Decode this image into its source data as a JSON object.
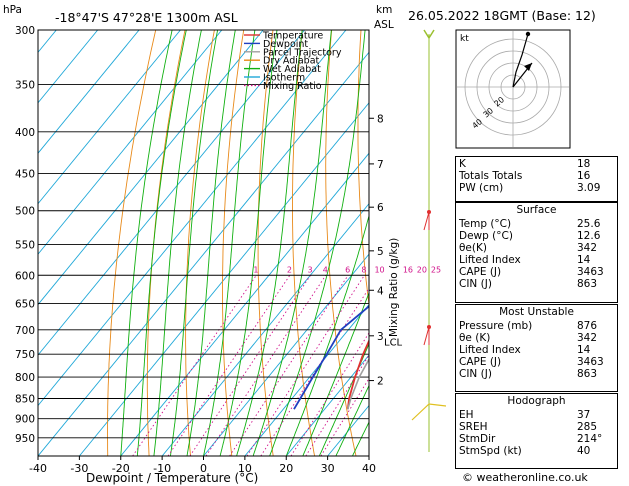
{
  "header": {
    "hpa": "hPa",
    "location": "-18°47'S  47°28'E  1300m  ASL",
    "km": "km",
    "asl": "ASL",
    "datetime": "26.05.2022  18GMT  (Base: 12)"
  },
  "chart_data": {
    "type": "line",
    "subtype": "skew-t log-p",
    "xlabel": "Dewpoint / Temperature (°C)",
    "ylabel_right": "Mixing Ratio (g/kg)",
    "x_ticks": [
      -40,
      -30,
      -20,
      -10,
      0,
      10,
      20,
      30,
      40
    ],
    "p_ticks": [
      300,
      350,
      400,
      450,
      500,
      550,
      600,
      650,
      700,
      750,
      800,
      850,
      900,
      950
    ],
    "km_ticks": [
      {
        "label": "2",
        "p": 808
      },
      {
        "label": "3",
        "p": 712
      },
      {
        "label": "4",
        "p": 626
      },
      {
        "label": "5",
        "p": 560
      },
      {
        "label": "6",
        "p": 495
      },
      {
        "label": "7",
        "p": 438
      },
      {
        "label": "8",
        "p": 385
      }
    ],
    "lcl": {
      "label": "LCL",
      "p": 713
    },
    "mixing_ratio_labels": [
      "1",
      "2",
      "3",
      "4",
      "6",
      "8",
      "10",
      "16",
      "20",
      "25"
    ],
    "legend": [
      "Temperature",
      "Dewpoint",
      "Parcel Trajectory",
      "Dry Adiabat",
      "Wet Adiabat",
      "Isotherm",
      "Mixing Ratio"
    ],
    "colors": {
      "temperature": "#e03030",
      "dewpoint": "#2040c0",
      "parcel": "#a0a0a0",
      "dry_adiabat": "#e88a1a",
      "wet_adiabat": "#10b010",
      "isotherm": "#20a8d8",
      "mixing_ratio": "#d0108a"
    },
    "series": [
      {
        "name": "Temperature",
        "points": [
          [
            876,
            25.6
          ],
          [
            850,
            23.8
          ],
          [
            800,
            21
          ],
          [
            750,
            18.4
          ],
          [
            700,
            16.2
          ],
          [
            650,
            19.5
          ],
          [
            600,
            22.6
          ],
          [
            550,
            25
          ],
          [
            500,
            27
          ],
          [
            450,
            21
          ],
          [
            400,
            8
          ],
          [
            350,
            -6
          ],
          [
            300,
            -22
          ]
        ]
      },
      {
        "name": "Dewpoint",
        "points": [
          [
            876,
            12.6
          ],
          [
            850,
            12
          ],
          [
            800,
            10.8
          ],
          [
            750,
            9.6
          ],
          [
            700,
            8.2
          ],
          [
            650,
            10.6
          ],
          [
            600,
            13.2
          ],
          [
            550,
            16
          ],
          [
            500,
            19
          ],
          [
            450,
            8
          ],
          [
            400,
            -8
          ],
          [
            350,
            -24
          ],
          [
            300,
            -42
          ]
        ]
      },
      {
        "name": "Parcel Trajectory",
        "points": [
          [
            876,
            25.6
          ],
          [
            850,
            24.2
          ],
          [
            800,
            22
          ],
          [
            750,
            20.5
          ],
          [
            713,
            19.6
          ],
          [
            650,
            17.6
          ],
          [
            600,
            16
          ],
          [
            550,
            14
          ],
          [
            500,
            11.5
          ],
          [
            450,
            8.5
          ],
          [
            400,
            5
          ],
          [
            350,
            1
          ],
          [
            300,
            -4
          ]
        ]
      }
    ]
  },
  "indices": [
    {
      "label": "K",
      "value": "18"
    },
    {
      "label": "Totals Totals",
      "value": "16"
    },
    {
      "label": "PW (cm)",
      "value": "3.09"
    }
  ],
  "surface": {
    "title": "Surface",
    "rows": [
      {
        "label": "Temp (°C)",
        "value": "25.6"
      },
      {
        "label": "Dewp (°C)",
        "value": "12.6"
      },
      {
        "label": "θe(K)",
        "value": "342"
      },
      {
        "label": "Lifted Index",
        "value": "14"
      },
      {
        "label": "CAPE (J)",
        "value": "3463"
      },
      {
        "label": "CIN (J)",
        "value": "863"
      }
    ]
  },
  "most_unstable": {
    "title": "Most Unstable",
    "rows": [
      {
        "label": "Pressure (mb)",
        "value": "876"
      },
      {
        "label": "θe (K)",
        "value": "342"
      },
      {
        "label": "Lifted Index",
        "value": "14"
      },
      {
        "label": "CAPE (J)",
        "value": "3463"
      },
      {
        "label": "CIN (J)",
        "value": "863"
      }
    ]
  },
  "hodograph": {
    "title": "Hodograph",
    "rows": [
      {
        "label": "EH",
        "value": "37"
      },
      {
        "label": "SREH",
        "value": "285"
      },
      {
        "label": "StmDir",
        "value": "214°"
      },
      {
        "label": "StmSpd (kt)",
        "value": "40"
      }
    ],
    "kt_label": "kt",
    "ring_labels": [
      "20",
      "30",
      "40"
    ]
  },
  "footer": {
    "copyright": "© weatheronline.co.uk"
  }
}
